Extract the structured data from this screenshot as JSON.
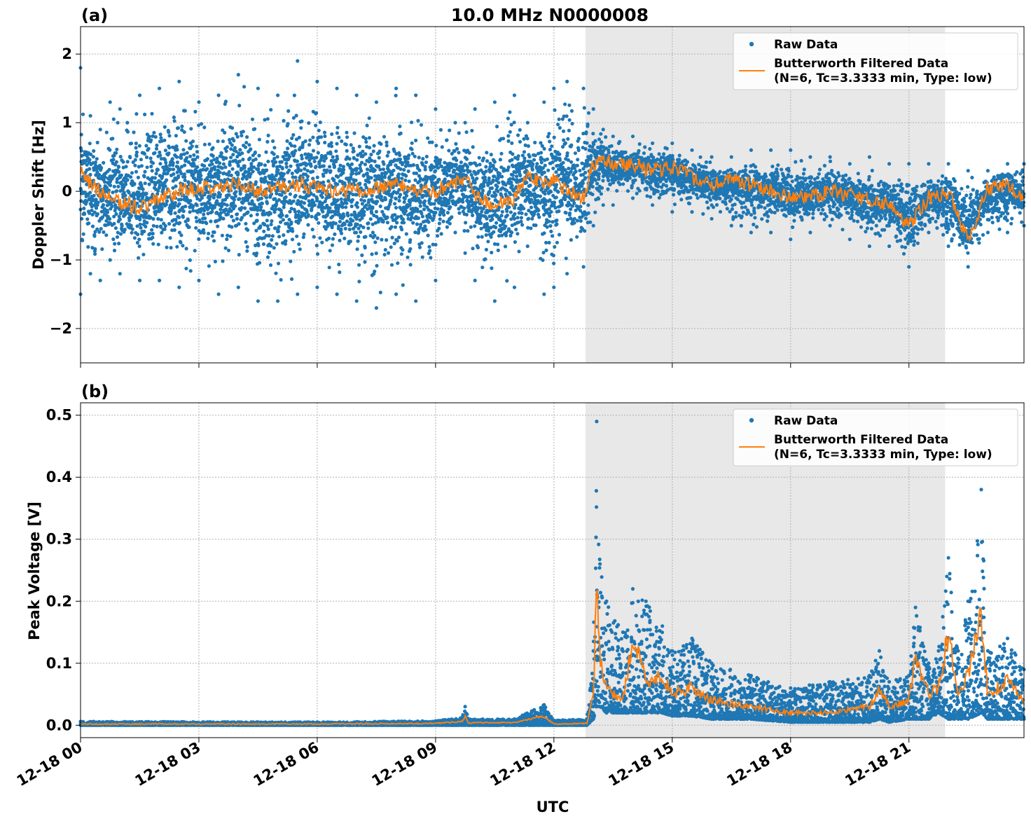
{
  "figure": {
    "title": "10.0 MHz N0000008",
    "xlabel": "UTC"
  },
  "colors": {
    "raw": "#1f77b4",
    "filtered": "#ff7f0e",
    "shade": "#e8e8e8",
    "grid": "#b0b0b0"
  },
  "chart_data": [
    {
      "type": "scatter",
      "panel_label": "(a)",
      "ylabel": "Doppler Shift [Hz]",
      "xlim": [
        "2018-12-18T00:00",
        "2018-12-18T23:55"
      ],
      "ylim": [
        -2.5,
        2.4
      ],
      "x_ticks": [
        "2018-12-18T00:00",
        "2018-12-18T03:00",
        "2018-12-18T06:00",
        "2018-12-18T09:00",
        "2018-12-18T12:00",
        "2018-12-18T15:00",
        "2018-12-18T18:00",
        "2018-12-18T21:00"
      ],
      "y_ticks": [
        -2,
        -1,
        0,
        1,
        2
      ],
      "y_tick_labels": [
        "−2",
        "−1",
        "0",
        "1",
        "2"
      ],
      "grid": true,
      "legend_position": "top-right",
      "shaded_interval": [
        "2018-12-18T12:48",
        "2018-12-18T21:55"
      ],
      "series": [
        {
          "name": "Raw Data",
          "kind": "scatter",
          "x": [
            "00:00",
            "00:15",
            "00:30",
            "00:45",
            "01:00",
            "01:30",
            "02:00",
            "02:30",
            "03:00",
            "03:30",
            "04:00",
            "04:30",
            "05:00",
            "05:30",
            "06:00",
            "06:30",
            "07:00",
            "07:30",
            "08:00",
            "08:30",
            "09:00",
            "09:30",
            "09:45",
            "10:00",
            "10:30",
            "11:00",
            "11:20",
            "11:45",
            "12:00",
            "12:20",
            "12:45",
            "13:00",
            "13:15",
            "13:30",
            "14:00",
            "14:30",
            "15:00",
            "15:30",
            "16:00",
            "16:30",
            "17:00",
            "17:30",
            "18:00",
            "18:30",
            "19:00",
            "19:30",
            "20:00",
            "20:30",
            "21:00",
            "21:30",
            "22:00",
            "22:30",
            "23:00",
            "23:30",
            "23:55"
          ],
          "y_max": [
            1.8,
            1.1,
            0.9,
            1.3,
            1.2,
            1.4,
            1.5,
            1.6,
            1.3,
            1.4,
            1.7,
            1.5,
            1.4,
            1.9,
            1.6,
            1.5,
            1.4,
            1.3,
            1.5,
            1.4,
            1.2,
            1.0,
            1.0,
            1.2,
            1.3,
            1.4,
            1.0,
            1.3,
            1.5,
            1.6,
            1.5,
            1.2,
            0.9,
            0.8,
            0.8,
            0.7,
            0.7,
            0.6,
            0.5,
            0.5,
            0.6,
            0.6,
            0.6,
            0.5,
            0.5,
            0.4,
            0.5,
            0.4,
            0.4,
            0.4,
            0.4,
            0.3,
            0.3,
            0.4,
            0.4
          ],
          "y_min": [
            -1.5,
            -1.2,
            -1.3,
            -1.0,
            -1.2,
            -1.3,
            -1.3,
            -1.4,
            -1.3,
            -1.5,
            -1.4,
            -1.6,
            -1.6,
            -1.5,
            -1.4,
            -1.5,
            -1.6,
            -1.7,
            -1.5,
            -1.6,
            -1.3,
            -0.6,
            -0.9,
            -1.3,
            -1.6,
            -1.4,
            -0.8,
            -1.5,
            -1.4,
            -1.2,
            -1.1,
            -0.5,
            -0.2,
            -0.2,
            -0.1,
            -0.2,
            -0.3,
            -0.3,
            -0.4,
            -0.5,
            -0.6,
            -0.6,
            -0.7,
            -0.6,
            -0.5,
            -0.7,
            -0.8,
            -0.8,
            -1.1,
            -0.6,
            -0.8,
            -1.1,
            -0.6,
            -0.6,
            -0.5
          ]
        },
        {
          "name": "Butterworth Filtered Data\n(N=6, Tc=3.3333 min, Type: low)",
          "kind": "line",
          "x": [
            "00:00",
            "00:15",
            "00:30",
            "00:45",
            "01:00",
            "01:30",
            "02:00",
            "02:30",
            "03:00",
            "03:30",
            "04:00",
            "04:30",
            "05:00",
            "05:30",
            "06:00",
            "06:30",
            "07:00",
            "07:30",
            "08:00",
            "08:30",
            "09:00",
            "09:30",
            "09:45",
            "10:00",
            "10:30",
            "11:00",
            "11:20",
            "11:45",
            "12:00",
            "12:20",
            "12:45",
            "13:00",
            "13:15",
            "13:30",
            "14:00",
            "14:30",
            "15:00",
            "15:30",
            "16:00",
            "16:30",
            "17:00",
            "17:30",
            "18:00",
            "18:30",
            "19:00",
            "19:30",
            "20:00",
            "20:30",
            "21:00",
            "21:30",
            "22:00",
            "22:30",
            "23:00",
            "23:30",
            "23:55"
          ],
          "y": [
            0.3,
            0.1,
            0.0,
            -0.1,
            -0.15,
            -0.25,
            -0.1,
            0.0,
            0.05,
            0.05,
            0.1,
            0.0,
            0.05,
            0.1,
            0.05,
            0.0,
            0.0,
            0.05,
            0.1,
            0.0,
            0.0,
            0.1,
            0.2,
            -0.1,
            -0.2,
            -0.1,
            0.2,
            0.1,
            0.15,
            0.0,
            -0.1,
            0.4,
            0.5,
            0.35,
            0.4,
            0.3,
            0.35,
            0.2,
            0.1,
            0.15,
            0.1,
            0.0,
            -0.1,
            -0.1,
            0.0,
            -0.05,
            -0.15,
            -0.2,
            -0.5,
            -0.1,
            0.0,
            -0.7,
            0.05,
            0.1,
            -0.1
          ]
        }
      ]
    },
    {
      "type": "scatter",
      "panel_label": "(b)",
      "ylabel": "Peak Voltage [V]",
      "xlim": [
        "2018-12-18T00:00",
        "2018-12-18T23:55"
      ],
      "ylim": [
        -0.02,
        0.52
      ],
      "x_ticks": [
        "2018-12-18T00:00",
        "2018-12-18T03:00",
        "2018-12-18T06:00",
        "2018-12-18T09:00",
        "2018-12-18T12:00",
        "2018-12-18T15:00",
        "2018-12-18T18:00",
        "2018-12-18T21:00"
      ],
      "x_tick_labels": [
        "12-18 00",
        "12-18 03",
        "12-18 06",
        "12-18 09",
        "12-18 12",
        "12-18 15",
        "12-18 18",
        "12-18 21"
      ],
      "y_ticks": [
        0.0,
        0.1,
        0.2,
        0.3,
        0.4,
        0.5
      ],
      "y_tick_labels": [
        "0.0",
        "0.1",
        "0.2",
        "0.3",
        "0.4",
        "0.5"
      ],
      "grid": true,
      "legend_position": "top-right",
      "shaded_interval": [
        "2018-12-18T12:48",
        "2018-12-18T21:55"
      ],
      "series": [
        {
          "name": "Raw Data",
          "kind": "scatter",
          "x": [
            "00:00",
            "06:00",
            "09:00",
            "09:40",
            "09:45",
            "09:50",
            "11:00",
            "11:30",
            "11:45",
            "12:00",
            "12:50",
            "13:00",
            "13:05",
            "13:10",
            "13:20",
            "13:45",
            "14:00",
            "14:20",
            "14:45",
            "15:00",
            "15:30",
            "16:00",
            "17:00",
            "18:00",
            "19:00",
            "20:00",
            "20:15",
            "20:30",
            "21:00",
            "21:10",
            "21:30",
            "21:45",
            "22:00",
            "22:15",
            "22:30",
            "22:50",
            "23:00",
            "23:30",
            "23:55"
          ],
          "y_max": [
            0.006,
            0.005,
            0.007,
            0.012,
            0.03,
            0.01,
            0.01,
            0.025,
            0.033,
            0.008,
            0.01,
            0.12,
            0.49,
            0.26,
            0.2,
            0.15,
            0.22,
            0.2,
            0.16,
            0.12,
            0.14,
            0.1,
            0.08,
            0.06,
            0.07,
            0.08,
            0.12,
            0.07,
            0.08,
            0.19,
            0.1,
            0.12,
            0.27,
            0.12,
            0.2,
            0.38,
            0.12,
            0.14,
            0.09
          ],
          "y_min": [
            0.0,
            0.0,
            0.0,
            0.0,
            0.0,
            0.0,
            0.0,
            0.0,
            0.0,
            0.0,
            0.0,
            0.01,
            0.03,
            0.03,
            0.02,
            0.02,
            0.02,
            0.02,
            0.02,
            0.015,
            0.015,
            0.01,
            0.01,
            0.005,
            0.005,
            0.005,
            0.01,
            0.005,
            0.01,
            0.01,
            0.01,
            0.02,
            0.01,
            0.01,
            0.01,
            0.02,
            0.01,
            0.01,
            0.01
          ]
        },
        {
          "name": "Butterworth Filtered Data\n(N=6, Tc=3.3333 min, Type: low)",
          "kind": "line",
          "x": [
            "00:00",
            "06:00",
            "09:00",
            "09:40",
            "09:45",
            "09:50",
            "11:00",
            "11:30",
            "11:45",
            "12:00",
            "12:50",
            "13:00",
            "13:05",
            "13:10",
            "13:20",
            "13:45",
            "14:00",
            "14:20",
            "14:45",
            "15:00",
            "15:30",
            "16:00",
            "17:00",
            "18:00",
            "19:00",
            "20:00",
            "20:15",
            "20:30",
            "21:00",
            "21:10",
            "21:30",
            "21:45",
            "22:00",
            "22:15",
            "22:30",
            "22:50",
            "23:00",
            "23:30",
            "23:55"
          ],
          "y": [
            0.002,
            0.002,
            0.003,
            0.006,
            0.015,
            0.004,
            0.004,
            0.012,
            0.014,
            0.002,
            0.003,
            0.05,
            0.23,
            0.1,
            0.06,
            0.04,
            0.14,
            0.07,
            0.08,
            0.05,
            0.06,
            0.04,
            0.03,
            0.02,
            0.02,
            0.03,
            0.06,
            0.03,
            0.04,
            0.11,
            0.05,
            0.06,
            0.15,
            0.05,
            0.08,
            0.18,
            0.05,
            0.07,
            0.04
          ]
        }
      ]
    }
  ]
}
